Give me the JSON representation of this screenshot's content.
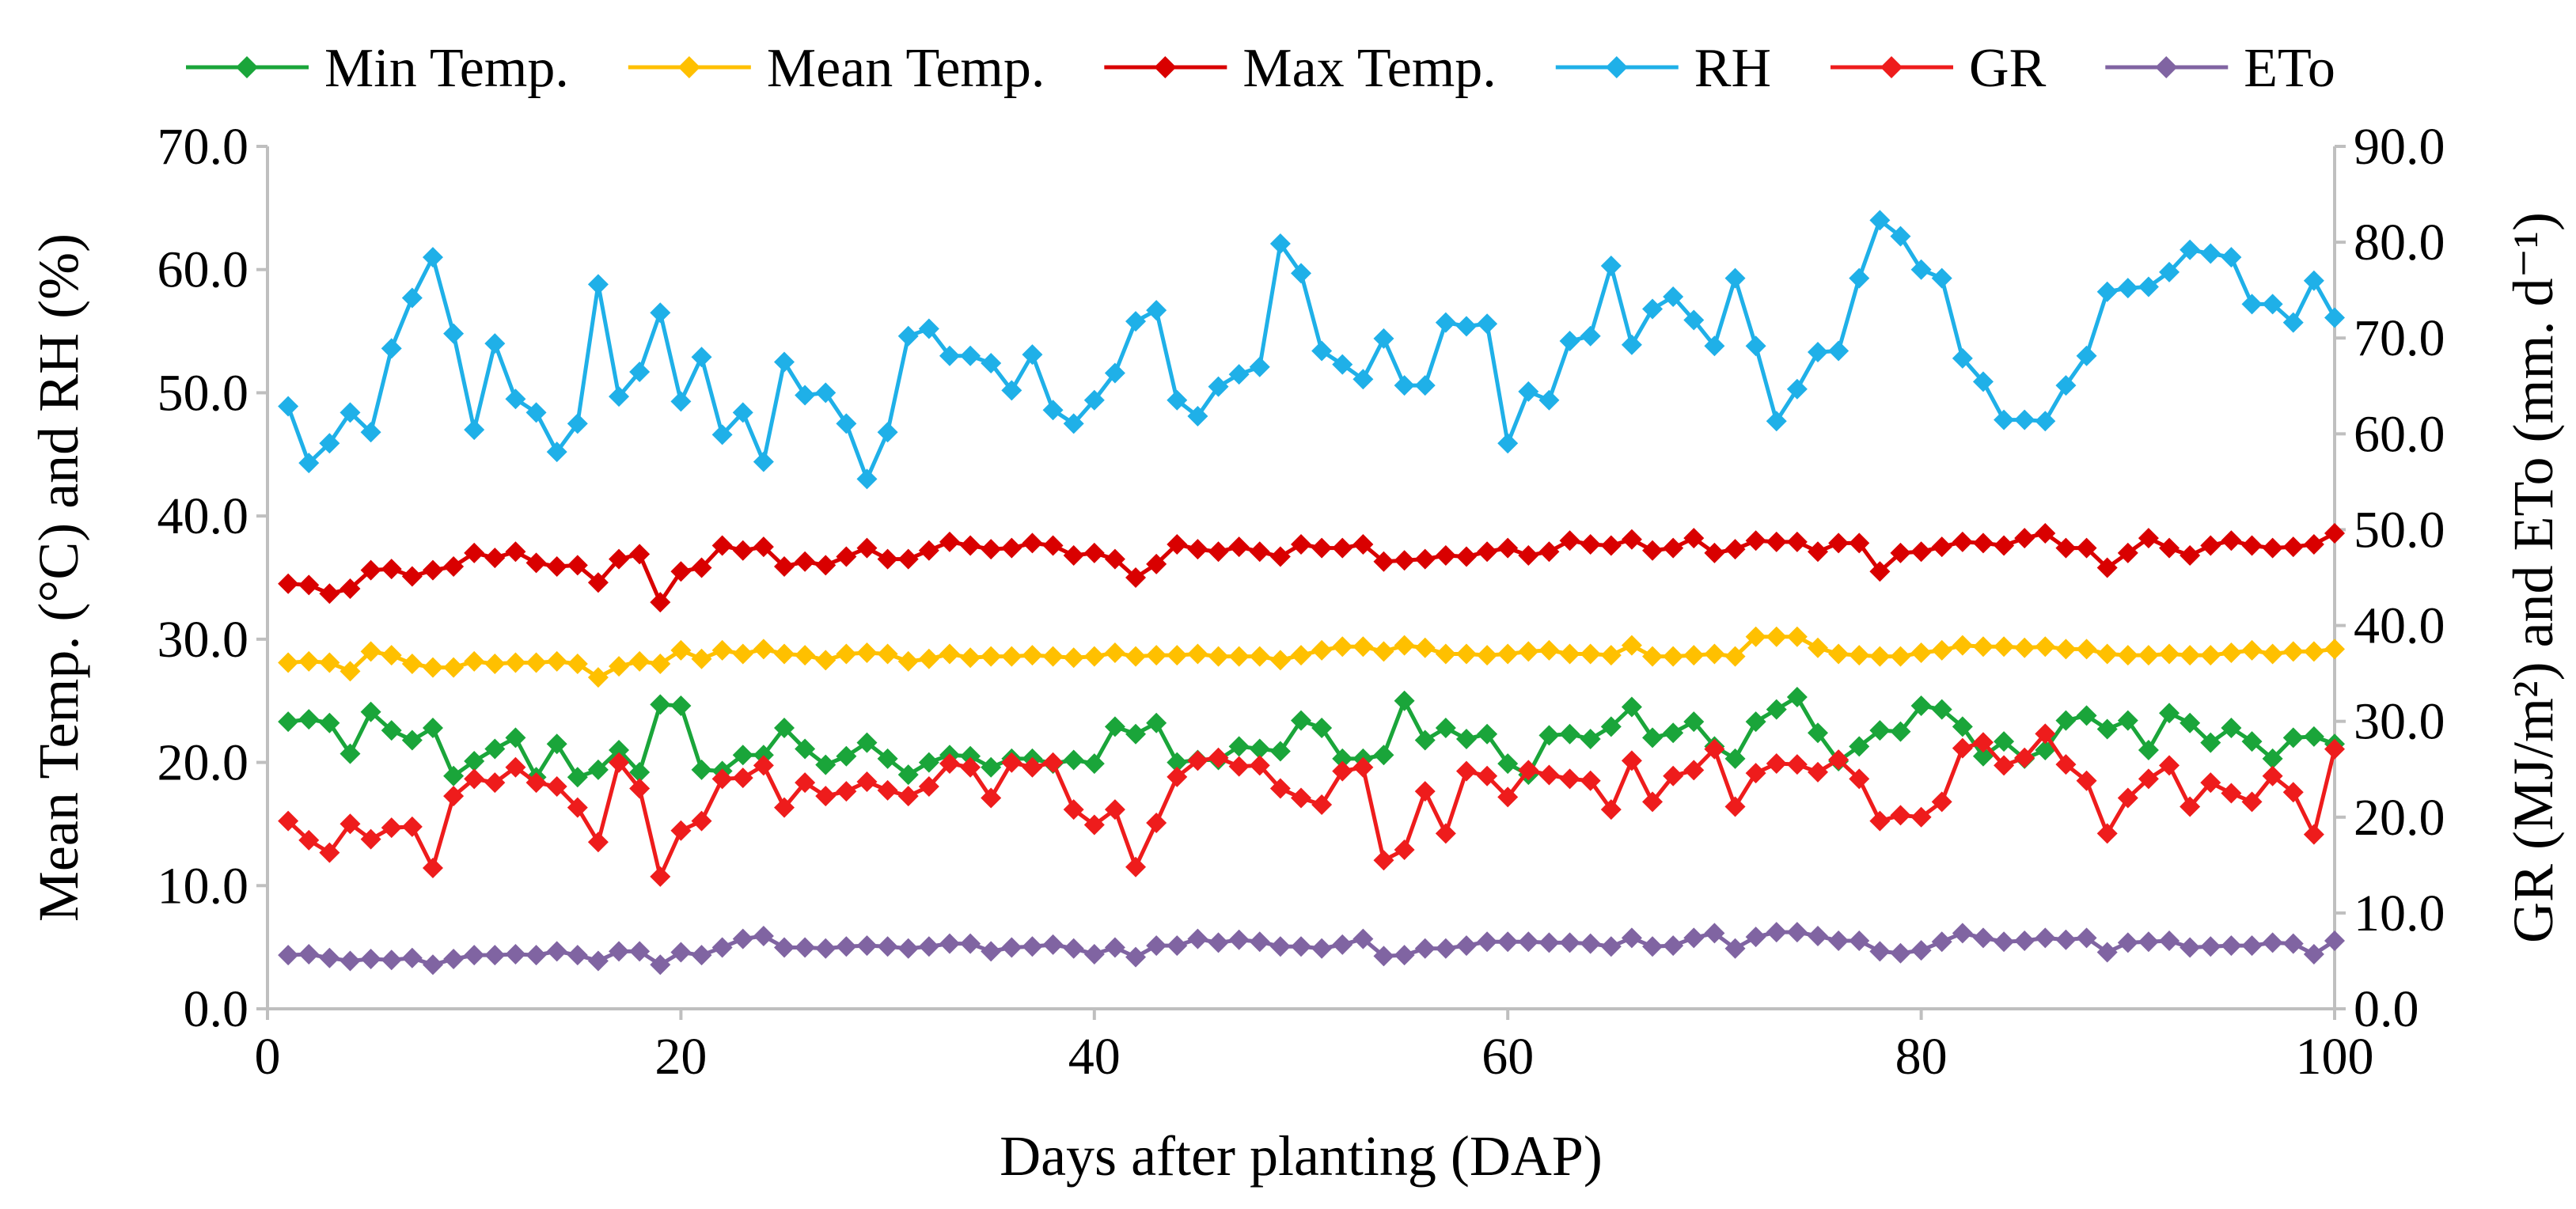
{
  "chart_data": {
    "type": "line",
    "title": "",
    "xlabel": "Days after planting (DAP)",
    "ylabel": "Mean Temp. (°C) and RH (%)",
    "y2label": "GR  (MJ/m²) and ETo (mm. d⁻¹)",
    "xlim": [
      0,
      100
    ],
    "ylim": [
      0,
      70
    ],
    "y2lim": [
      0,
      90
    ],
    "xticks": [
      "0",
      "20",
      "40",
      "60",
      "80",
      "100"
    ],
    "yticks": [
      "0.0",
      "10.0",
      "20.0",
      "30.0",
      "40.0",
      "50.0",
      "60.0",
      "70.0"
    ],
    "y2ticks": [
      "0.0",
      "10.0",
      "20.0",
      "30.0",
      "40.0",
      "50.0",
      "60.0",
      "70.0",
      "80.0",
      "90.0"
    ],
    "legend_position": "top",
    "x": [
      1,
      2,
      3,
      4,
      5,
      6,
      7,
      8,
      9,
      10,
      11,
      12,
      13,
      14,
      15,
      16,
      17,
      18,
      19,
      20,
      21,
      22,
      23,
      24,
      25,
      26,
      27,
      28,
      29,
      30,
      31,
      32,
      33,
      34,
      35,
      36,
      37,
      38,
      39,
      40,
      41,
      42,
      43,
      44,
      45,
      46,
      47,
      48,
      49,
      50,
      51,
      52,
      53,
      54,
      55,
      56,
      57,
      58,
      59,
      60,
      61,
      62,
      63,
      64,
      65,
      66,
      67,
      68,
      69,
      70,
      71,
      72,
      73,
      74,
      75,
      76,
      77,
      78,
      79,
      80,
      81,
      82,
      83,
      84,
      85,
      86,
      87,
      88,
      89,
      90,
      91,
      92,
      93,
      94,
      95,
      96,
      97,
      98,
      99,
      100
    ],
    "series": [
      {
        "name": "Min Temp.",
        "axis": "left",
        "color": "#1aa53a",
        "values": [
          23.3,
          23.5,
          23.2,
          20.7,
          24.1,
          22.6,
          21.8,
          22.8,
          18.9,
          20.1,
          21.1,
          22.0,
          18.8,
          21.5,
          18.8,
          19.4,
          21.0,
          19.2,
          24.7,
          24.6,
          19.4,
          19.3,
          20.6,
          20.6,
          22.8,
          21.1,
          19.8,
          20.5,
          21.6,
          20.3,
          19.0,
          20.0,
          20.6,
          20.5,
          19.6,
          20.3,
          20.3,
          19.9,
          20.2,
          19.9,
          22.9,
          22.3,
          23.2,
          20.0,
          20.2,
          20.2,
          21.3,
          21.1,
          20.9,
          23.4,
          22.8,
          20.3,
          20.3,
          20.6,
          25.0,
          21.8,
          22.8,
          21.9,
          22.3,
          19.9,
          19.0,
          22.2,
          22.3,
          21.9,
          22.9,
          24.5,
          22.0,
          22.4,
          23.3,
          21.3,
          20.3,
          23.3,
          24.3,
          25.3,
          22.4,
          20.1,
          21.3,
          22.6,
          22.5,
          24.6,
          24.3,
          22.9,
          20.5,
          21.7,
          20.3,
          21.0,
          23.4,
          23.8,
          22.7,
          23.4,
          21.0,
          24.0,
          23.2,
          21.6,
          22.8,
          21.7,
          20.3,
          22.0,
          22.1,
          21.5
        ]
      },
      {
        "name": "Mean Temp.",
        "axis": "left",
        "color": "#ffc000",
        "values": [
          28.1,
          28.2,
          28.1,
          27.4,
          29.0,
          28.7,
          28.0,
          27.7,
          27.7,
          28.2,
          28.0,
          28.1,
          28.1,
          28.2,
          28.0,
          26.9,
          27.8,
          28.2,
          28.0,
          29.1,
          28.4,
          29.1,
          28.8,
          29.2,
          28.8,
          28.7,
          28.3,
          28.8,
          28.9,
          28.8,
          28.2,
          28.4,
          28.8,
          28.5,
          28.6,
          28.6,
          28.7,
          28.6,
          28.5,
          28.6,
          28.9,
          28.6,
          28.7,
          28.7,
          28.8,
          28.6,
          28.6,
          28.6,
          28.3,
          28.7,
          29.1,
          29.4,
          29.4,
          29.0,
          29.5,
          29.3,
          28.8,
          28.8,
          28.7,
          28.8,
          29.0,
          29.1,
          28.8,
          28.8,
          28.7,
          29.5,
          28.6,
          28.6,
          28.7,
          28.8,
          28.6,
          30.2,
          30.2,
          30.2,
          29.3,
          28.8,
          28.7,
          28.6,
          28.6,
          28.9,
          29.1,
          29.5,
          29.4,
          29.4,
          29.3,
          29.4,
          29.2,
          29.2,
          28.8,
          28.7,
          28.7,
          28.8,
          28.7,
          28.7,
          28.9,
          29.1,
          28.8,
          29.0,
          29.0,
          29.2
        ]
      },
      {
        "name": "Max Temp.",
        "axis": "left",
        "color": "#d90000",
        "values": [
          34.5,
          34.4,
          33.7,
          34.1,
          35.6,
          35.7,
          35.1,
          35.6,
          35.9,
          37.0,
          36.6,
          37.1,
          36.2,
          35.9,
          36.0,
          34.6,
          36.5,
          36.9,
          33.0,
          35.5,
          35.8,
          37.6,
          37.2,
          37.5,
          35.9,
          36.3,
          36.0,
          36.7,
          37.4,
          36.5,
          36.5,
          37.2,
          37.9,
          37.6,
          37.3,
          37.4,
          37.8,
          37.6,
          36.8,
          37.0,
          36.5,
          35.0,
          36.1,
          37.7,
          37.3,
          37.1,
          37.5,
          37.1,
          36.7,
          37.7,
          37.4,
          37.4,
          37.7,
          36.3,
          36.4,
          36.5,
          36.8,
          36.7,
          37.1,
          37.4,
          36.8,
          37.1,
          38.0,
          37.7,
          37.6,
          38.1,
          37.2,
          37.4,
          38.2,
          37.0,
          37.3,
          38.0,
          37.9,
          37.9,
          37.1,
          37.8,
          37.8,
          35.5,
          37.0,
          37.1,
          37.5,
          37.9,
          37.8,
          37.6,
          38.2,
          38.6,
          37.4,
          37.4,
          35.8,
          37.0,
          38.2,
          37.4,
          36.8,
          37.6,
          38.0,
          37.6,
          37.4,
          37.5,
          37.7,
          38.6
        ]
      },
      {
        "name": "RH",
        "axis": "left",
        "color": "#1fb0e8",
        "values": [
          48.9,
          44.3,
          45.9,
          48.4,
          46.8,
          53.6,
          57.7,
          61.0,
          54.8,
          47.0,
          54.0,
          49.5,
          48.4,
          45.2,
          47.5,
          58.8,
          49.7,
          51.7,
          56.5,
          49.3,
          52.9,
          46.6,
          48.4,
          44.4,
          52.5,
          49.8,
          50.0,
          47.5,
          43.0,
          46.8,
          54.6,
          55.2,
          53.0,
          53.0,
          52.4,
          50.2,
          53.1,
          48.6,
          47.5,
          49.4,
          51.6,
          55.8,
          56.7,
          49.4,
          48.1,
          50.5,
          51.5,
          52.1,
          62.1,
          59.7,
          53.4,
          52.3,
          51.1,
          54.4,
          50.6,
          50.6,
          55.7,
          55.4,
          55.6,
          45.9,
          50.1,
          49.4,
          54.2,
          54.6,
          60.3,
          53.9,
          56.8,
          57.8,
          55.9,
          53.8,
          59.3,
          53.8,
          47.7,
          50.3,
          53.3,
          53.4,
          59.3,
          64.0,
          62.7,
          60.0,
          59.3,
          52.8,
          50.9,
          47.8,
          47.8,
          47.7,
          50.6,
          53.0,
          58.2,
          58.5,
          58.6,
          59.8,
          61.6,
          61.3,
          61.0,
          57.2,
          57.2,
          55.7,
          59.1,
          56.1
        ]
      },
      {
        "name": "GR",
        "axis": "right",
        "color": "#ee1c1c",
        "values": [
          19.6,
          17.6,
          16.3,
          19.3,
          17.7,
          18.9,
          19.0,
          14.7,
          22.2,
          24.0,
          23.6,
          25.2,
          23.6,
          23.2,
          21.0,
          17.4,
          25.7,
          23.0,
          13.8,
          18.6,
          19.6,
          24.0,
          24.1,
          25.4,
          21.0,
          23.6,
          22.2,
          22.7,
          23.7,
          22.8,
          22.2,
          23.2,
          25.6,
          25.2,
          22.0,
          25.7,
          25.2,
          25.7,
          20.8,
          19.2,
          20.8,
          14.8,
          19.4,
          24.2,
          25.9,
          26.2,
          25.3,
          25.4,
          23.0,
          22.0,
          21.3,
          24.8,
          25.2,
          15.5,
          16.6,
          22.7,
          18.3,
          24.8,
          24.3,
          22.1,
          24.9,
          24.4,
          24.0,
          23.8,
          20.8,
          25.9,
          21.6,
          24.3,
          24.9,
          27.1,
          21.1,
          24.6,
          25.6,
          25.5,
          24.7,
          26.0,
          24.0,
          19.6,
          20.2,
          20.0,
          21.6,
          27.2,
          27.8,
          25.4,
          26.2,
          28.7,
          25.5,
          23.8,
          18.3,
          22.0,
          24.0,
          25.4,
          21.1,
          23.6,
          22.5,
          21.6,
          24.3,
          22.6,
          18.2,
          27.1
        ]
      },
      {
        "name": "ETo",
        "axis": "right",
        "color": "#8064a2",
        "values": [
          5.6,
          5.7,
          5.3,
          5.0,
          5.2,
          5.1,
          5.3,
          4.6,
          5.2,
          5.6,
          5.6,
          5.7,
          5.6,
          6.0,
          5.6,
          5.0,
          6.0,
          6.0,
          4.6,
          5.9,
          5.6,
          6.4,
          7.3,
          7.6,
          6.4,
          6.4,
          6.3,
          6.5,
          6.6,
          6.5,
          6.3,
          6.5,
          6.8,
          6.8,
          6.0,
          6.4,
          6.5,
          6.7,
          6.3,
          5.7,
          6.4,
          5.4,
          6.6,
          6.6,
          7.3,
          6.9,
          7.2,
          7.0,
          6.5,
          6.5,
          6.3,
          6.7,
          7.3,
          5.5,
          5.6,
          6.3,
          6.3,
          6.6,
          7.0,
          7.0,
          7.0,
          6.9,
          6.9,
          6.8,
          6.5,
          7.4,
          6.5,
          6.6,
          7.4,
          7.9,
          6.3,
          7.5,
          8.0,
          8.0,
          7.6,
          7.1,
          7.1,
          6.0,
          5.8,
          6.1,
          7.0,
          7.9,
          7.4,
          7.0,
          7.1,
          7.4,
          7.2,
          7.4,
          5.9,
          6.9,
          7.0,
          7.1,
          6.4,
          6.5,
          6.6,
          6.6,
          6.9,
          6.8,
          5.7,
          7.1
        ]
      }
    ]
  }
}
